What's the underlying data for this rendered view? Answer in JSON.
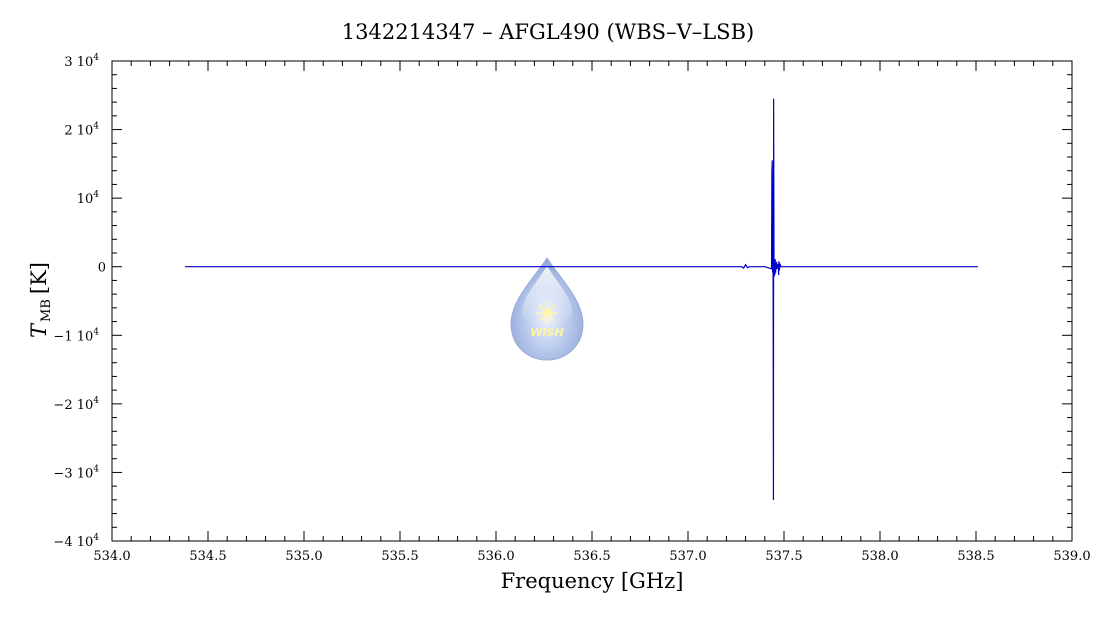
{
  "chart_data": {
    "type": "line",
    "title": "1342214347 – AFGL490 (WBS–V–LSB)",
    "xlabel": "Frequency [GHz]",
    "ylabel_symbol": "T",
    "ylabel_subscript": "MB",
    "ylabel_unit": "[K]",
    "xlim": [
      534.0,
      539.0
    ],
    "ylim": [
      -40000,
      30000
    ],
    "x_ticks": [
      534.0,
      534.5,
      535.0,
      535.5,
      536.0,
      536.5,
      537.0,
      537.5,
      538.0,
      538.5,
      539.0
    ],
    "x_tick_labels": [
      "534.0",
      "534.5",
      "535.0",
      "535.5",
      "536.0",
      "536.5",
      "537.0",
      "537.5",
      "538.0",
      "538.5",
      "539.0"
    ],
    "y_ticks": [
      {
        "value": 30000,
        "mant": "3 10",
        "exp": "4"
      },
      {
        "value": 20000,
        "mant": "2 10",
        "exp": "4"
      },
      {
        "value": 10000,
        "mant": "10",
        "exp": "4"
      },
      {
        "value": 0,
        "mant": "0",
        "exp": ""
      },
      {
        "value": -10000,
        "mant": "−1 10",
        "exp": "4"
      },
      {
        "value": -20000,
        "mant": "−2 10",
        "exp": "4"
      },
      {
        "value": -30000,
        "mant": "−3 10",
        "exp": "4"
      },
      {
        "value": -40000,
        "mant": "−4 10",
        "exp": "4"
      }
    ],
    "grid": false,
    "series": [
      {
        "color": "#0000cc",
        "points": [
          [
            534.38,
            0
          ],
          [
            537.28,
            0
          ],
          [
            537.29,
            -200
          ],
          [
            537.3,
            300
          ],
          [
            537.31,
            -150
          ],
          [
            537.32,
            0
          ],
          [
            537.4,
            0
          ],
          [
            537.435,
            -300
          ],
          [
            537.437,
            14000
          ],
          [
            537.439,
            15500
          ],
          [
            537.441,
            -800
          ],
          [
            537.443,
            800
          ],
          [
            537.445,
            -34000
          ],
          [
            537.446,
            24500
          ],
          [
            537.448,
            -1500
          ],
          [
            537.45,
            900
          ],
          [
            537.452,
            -1200
          ],
          [
            537.454,
            1100
          ],
          [
            537.456,
            -900
          ],
          [
            537.458,
            600
          ],
          [
            537.46,
            -400
          ],
          [
            537.462,
            700
          ],
          [
            537.464,
            -300
          ],
          [
            537.47,
            400
          ],
          [
            537.472,
            -1200
          ],
          [
            537.474,
            800
          ],
          [
            537.476,
            -500
          ],
          [
            537.48,
            300
          ],
          [
            537.485,
            0
          ],
          [
            538.51,
            0
          ]
        ]
      }
    ]
  },
  "logo": {
    "text": "WISH"
  }
}
